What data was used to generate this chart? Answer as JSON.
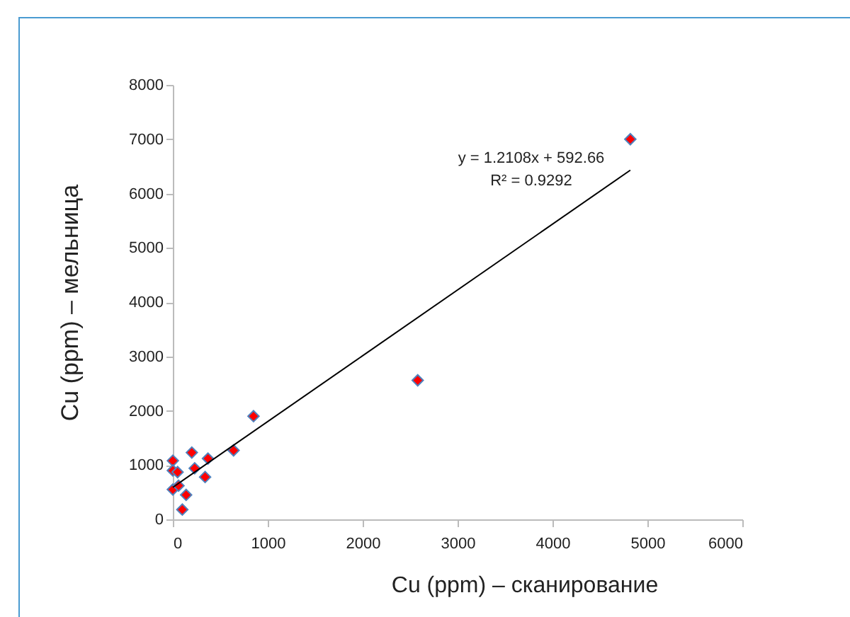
{
  "chart_data": {
    "type": "scatter",
    "xlabel": "Cu (ppm) – сканирование",
    "ylabel": "Cu (ppm) – мельница",
    "xlim": [
      0,
      6000
    ],
    "xticks": [
      0,
      1000,
      2000,
      3000,
      4000,
      5000,
      6000
    ],
    "ylim": [
      0,
      8000
    ],
    "yticks": [
      0,
      1000,
      2000,
      3000,
      4000,
      5000,
      6000,
      7000,
      8000
    ],
    "grid": false,
    "series": [
      {
        "marker": "diamond",
        "color": "#ff0000",
        "x": [
          0,
          0,
          50,
          0,
          60,
          140,
          100,
          200,
          230,
          370,
          340,
          640,
          850,
          2580,
          4820
        ],
        "values": [
          1080,
          900,
          870,
          550,
          620,
          450,
          180,
          1230,
          940,
          1120,
          780,
          1270,
          1900,
          2560,
          7000
        ]
      },
      {
        "type": "line",
        "marker": "none",
        "color": "#000000",
        "x": [
          0,
          4820
        ],
        "values": [
          590,
          6430
        ]
      }
    ],
    "annotations": [
      "y = 1.2108x + 592.66",
      "R² = 0.9292"
    ]
  }
}
